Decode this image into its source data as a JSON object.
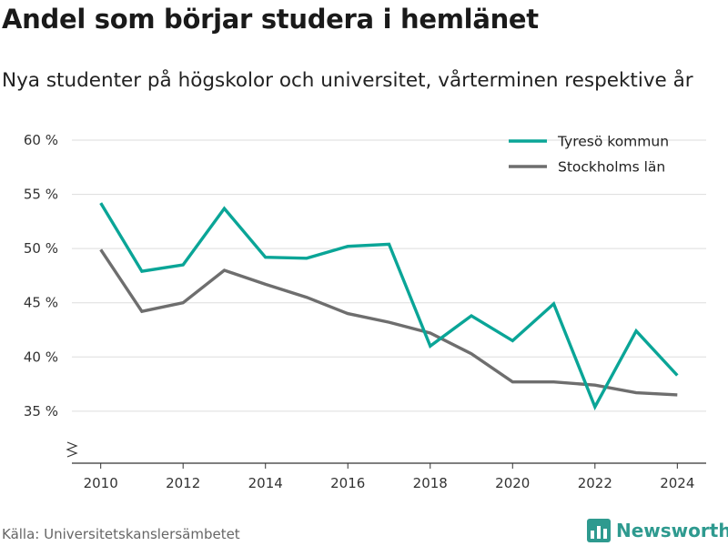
{
  "header": {
    "title": "Andel som börjar studera i hemlänet",
    "subtitle": "Nya studenter på högskolor och universitet, vårterminen respektive år"
  },
  "footer": {
    "source": "Källa: Universitetskanslersämbetet",
    "brand": "Newsworthy",
    "brand_icon": "bar-chart-logo-icon"
  },
  "colors": {
    "tyreso": "#0aa597",
    "stockholm": "#6e6e6e",
    "grid": "#dddddd",
    "brand": "#2e9a8f"
  },
  "chart_data": {
    "type": "line",
    "x": [
      2010,
      2011,
      2012,
      2013,
      2014,
      2015,
      2016,
      2017,
      2018,
      2019,
      2020,
      2021,
      2022,
      2023,
      2024
    ],
    "series": [
      {
        "name": "Tyresö kommun",
        "values": [
          54.2,
          47.9,
          48.5,
          53.7,
          49.2,
          49.1,
          50.2,
          50.4,
          41.0,
          43.8,
          41.5,
          44.9,
          35.4,
          42.4,
          38.3
        ]
      },
      {
        "name": "Stockholms län",
        "values": [
          49.9,
          44.2,
          45.0,
          48.0,
          46.7,
          45.5,
          44.0,
          43.2,
          42.2,
          40.3,
          37.7,
          37.7,
          37.4,
          36.7,
          36.5
        ]
      }
    ],
    "yticks": [
      35,
      40,
      45,
      50,
      55,
      60
    ],
    "ytick_labels": [
      "35 %",
      "40 %",
      "45 %",
      "50 %",
      "55 %",
      "60 %"
    ],
    "xticks": [
      2010,
      2012,
      2014,
      2016,
      2018,
      2020,
      2022,
      2024
    ],
    "xtick_labels": [
      "2010",
      "2012",
      "2014",
      "2016",
      "2018",
      "2020",
      "2022",
      "2024"
    ],
    "ylim": [
      30.2,
      60
    ],
    "xlim": [
      2009.3,
      2024.7
    ],
    "y_axis_break": true,
    "grid": true,
    "legend": "top-right"
  }
}
